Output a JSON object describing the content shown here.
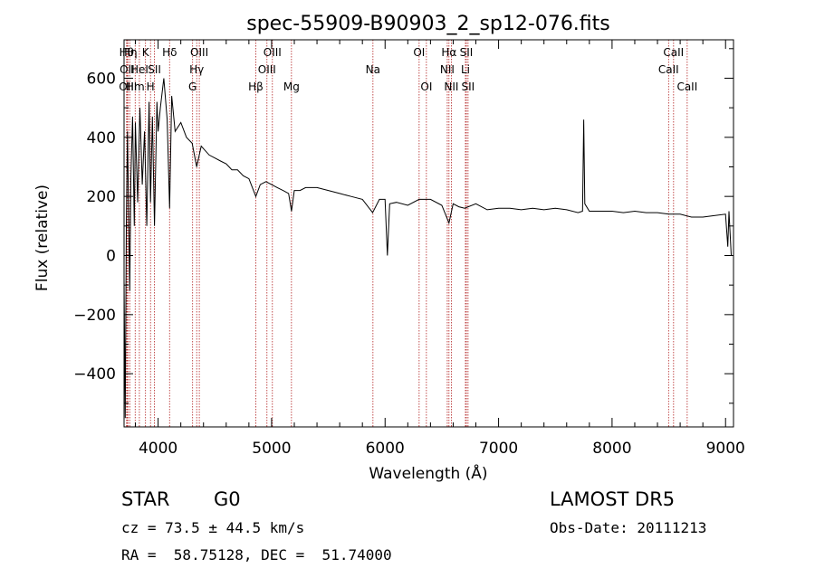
{
  "chart_data": {
    "type": "line",
    "title": "spec-55909-B90903_2_sp12-076.fits",
    "xlabel": "Wavelength (Å)",
    "ylabel": "Flux (relative)",
    "xlim": [
      3700,
      9070
    ],
    "ylim": [
      -580,
      730
    ],
    "xticks": [
      4000,
      5000,
      6000,
      7000,
      8000,
      9000
    ],
    "yticks": [
      -400,
      -200,
      0,
      200,
      400,
      600
    ],
    "grid": false,
    "line_color": "#000000",
    "marker_color": "#b22222",
    "series": [
      {
        "x": [
          3700,
          3710,
          3720,
          3730,
          3740,
          3750,
          3760,
          3775,
          3790,
          3800,
          3820,
          3840,
          3860,
          3880,
          3900,
          3920,
          3933,
          3950,
          3968,
          3990,
          4000,
          4020,
          4050,
          4080,
          4101,
          4120,
          4150,
          4200,
          4250,
          4300,
          4340,
          4380,
          4450,
          4500,
          4550,
          4600,
          4650,
          4700,
          4750,
          4800,
          4861,
          4900,
          4950,
          5000,
          5050,
          5100,
          5150,
          5175,
          5200,
          5250,
          5300,
          5400,
          5500,
          5600,
          5700,
          5800,
          5890,
          5950,
          6000,
          6020,
          6040,
          6100,
          6200,
          6300,
          6400,
          6500,
          6563,
          6600,
          6650,
          6700,
          6800,
          6900,
          7000,
          7100,
          7200,
          7300,
          7400,
          7500,
          7600,
          7700,
          7740,
          7750,
          7760,
          7800,
          7900,
          8000,
          8100,
          8200,
          8300,
          8400,
          8500,
          8600,
          8700,
          8800,
          8900,
          9000,
          9020,
          9030,
          9050
        ],
        "values": [
          -80,
          -550,
          100,
          420,
          140,
          -120,
          260,
          470,
          100,
          450,
          180,
          500,
          240,
          420,
          100,
          520,
          180,
          470,
          100,
          520,
          420,
          500,
          600,
          460,
          160,
          540,
          420,
          450,
          400,
          380,
          300,
          370,
          340,
          330,
          320,
          310,
          290,
          290,
          270,
          260,
          200,
          240,
          250,
          240,
          230,
          220,
          210,
          150,
          220,
          220,
          230,
          230,
          220,
          210,
          200,
          190,
          145,
          190,
          190,
          0,
          175,
          180,
          170,
          190,
          190,
          170,
          110,
          175,
          165,
          160,
          175,
          155,
          160,
          160,
          155,
          160,
          155,
          160,
          155,
          145,
          150,
          460,
          175,
          150,
          150,
          150,
          145,
          150,
          145,
          145,
          140,
          140,
          130,
          130,
          135,
          140,
          30,
          150,
          0
        ]
      }
    ],
    "lines": [
      {
        "x": 3722,
        "label": "Hθ",
        "row": 0
      },
      {
        "x": 3727,
        "label": "OII",
        "row": 1
      },
      {
        "x": 3734,
        "label": "OIII",
        "row": 2
      },
      {
        "x": 3750,
        "label": "Hη",
        "row": 0
      },
      {
        "x": 3798,
        "label": "Hm",
        "row": 2
      },
      {
        "x": 3835,
        "label": "HeI",
        "row": 1
      },
      {
        "x": 3889,
        "label": "K",
        "row": 0
      },
      {
        "x": 3933,
        "label": "H",
        "row": 2
      },
      {
        "x": 3968,
        "label": "SII",
        "row": 1
      },
      {
        "x": 4101,
        "label": "Hδ",
        "row": 0
      },
      {
        "x": 4304,
        "label": "G",
        "row": 2
      },
      {
        "x": 4340,
        "label": "Hγ",
        "row": 1
      },
      {
        "x": 4363,
        "label": "OIII",
        "row": 0
      },
      {
        "x": 4861,
        "label": "Hβ",
        "row": 2
      },
      {
        "x": 4959,
        "label": "OIII",
        "row": 1
      },
      {
        "x": 5007,
        "label": "OIII",
        "row": 0
      },
      {
        "x": 5175,
        "label": "Mg",
        "row": 2
      },
      {
        "x": 5893,
        "label": "Na",
        "row": 1
      },
      {
        "x": 6300,
        "label": "OI",
        "row": 0
      },
      {
        "x": 6364,
        "label": "OI",
        "row": 2
      },
      {
        "x": 6548,
        "label": "NII",
        "row": 1
      },
      {
        "x": 6563,
        "label": "Hα",
        "row": 0
      },
      {
        "x": 6584,
        "label": "NII",
        "row": 2
      },
      {
        "x": 6708,
        "label": "Li",
        "row": 1
      },
      {
        "x": 6716,
        "label": "SII",
        "row": 0
      },
      {
        "x": 6731,
        "label": "SII",
        "row": 2
      },
      {
        "x": 8498,
        "label": "CaII",
        "row": 1
      },
      {
        "x": 8542,
        "label": "CaII",
        "row": 0
      },
      {
        "x": 8662,
        "label": "CaII",
        "row": 2
      }
    ]
  },
  "info": {
    "class_label": "STAR",
    "subclass_label": "G0",
    "survey_label": "LAMOST DR5",
    "cz_text": "cz = 73.5 ± 44.5 km/s",
    "obs_date_text": "Obs-Date: 20111213",
    "coords_text": "RA =  58.75128, DEC =  51.74000"
  }
}
